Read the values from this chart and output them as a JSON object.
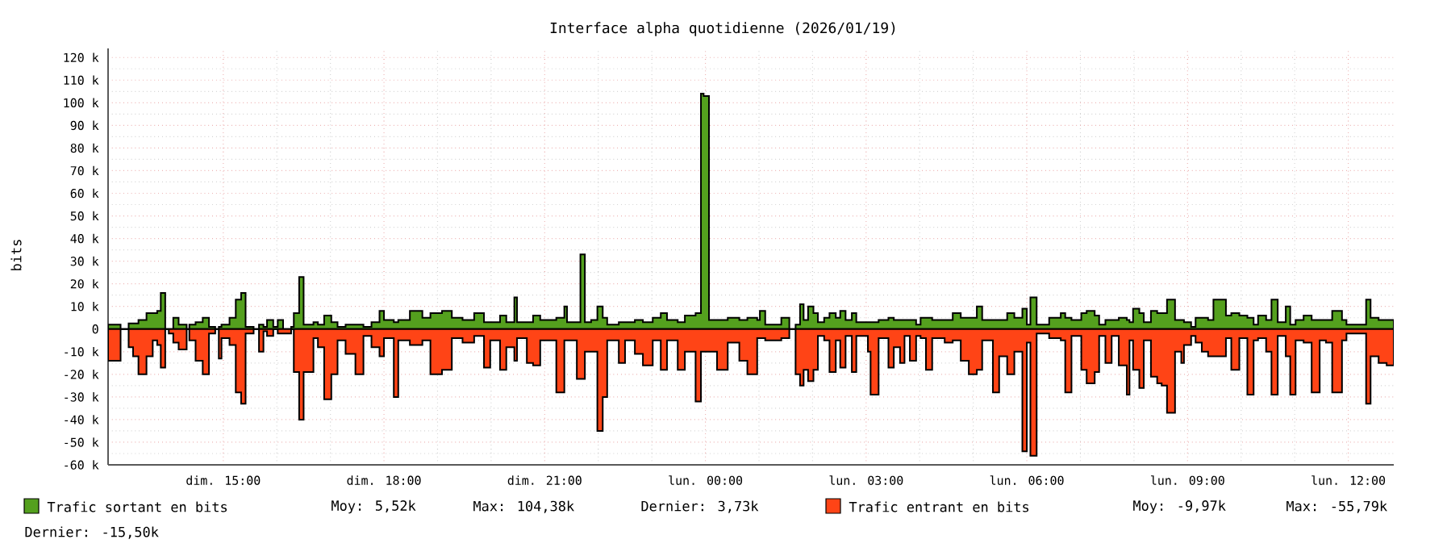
{
  "chart_data": {
    "type": "area",
    "title": "Interface alpha quotidienne (2026/01/19)",
    "ylabel": "bits",
    "x": [
      "2026-01-18T12:51",
      "2026-01-18T13:05",
      "2026-01-18T13:14",
      "2026-01-18T13:19",
      "2026-01-18T13:25",
      "2026-01-18T13:34",
      "2026-01-18T13:41",
      "2026-01-18T13:46",
      "2026-01-18T13:50",
      "2026-01-18T13:55",
      "2026-01-18T13:59",
      "2026-01-18T14:04",
      "2026-01-18T14:10",
      "2026-01-18T14:19",
      "2026-01-18T14:22",
      "2026-01-18T14:29",
      "2026-01-18T14:37",
      "2026-01-18T14:44",
      "2026-01-18T14:51",
      "2026-01-18T14:55",
      "2026-01-18T14:58",
      "2026-01-18T15:07",
      "2026-01-18T15:14",
      "2026-01-18T15:20",
      "2026-01-18T15:25",
      "2026-01-18T15:34",
      "2026-01-18T15:40",
      "2026-01-18T15:45",
      "2026-01-18T15:49",
      "2026-01-18T15:56",
      "2026-01-18T16:01",
      "2026-01-18T16:07",
      "2026-01-18T16:16",
      "2026-01-18T16:19",
      "2026-01-18T16:25",
      "2026-01-18T16:30",
      "2026-01-18T16:41",
      "2026-01-18T16:46",
      "2026-01-18T16:53",
      "2026-01-18T17:01",
      "2026-01-18T17:08",
      "2026-01-18T17:17",
      "2026-01-18T17:28",
      "2026-01-18T17:37",
      "2026-01-18T17:46",
      "2026-01-18T17:55",
      "2026-01-18T18:00",
      "2026-01-18T18:11",
      "2026-01-18T18:16",
      "2026-01-18T18:29",
      "2026-01-18T18:43",
      "2026-01-18T18:52",
      "2026-01-18T19:05",
      "2026-01-18T19:16",
      "2026-01-18T19:28",
      "2026-01-18T19:41",
      "2026-01-18T19:52",
      "2026-01-18T19:59",
      "2026-01-18T20:10",
      "2026-01-18T20:17",
      "2026-01-18T20:26",
      "2026-01-18T20:29",
      "2026-01-18T20:40",
      "2026-01-18T20:47",
      "2026-01-18T20:55",
      "2026-01-18T21:13",
      "2026-01-18T21:22",
      "2026-01-18T21:25",
      "2026-01-18T21:36",
      "2026-01-18T21:40",
      "2026-01-18T21:45",
      "2026-01-18T21:52",
      "2026-01-18T21:59",
      "2026-01-18T22:05",
      "2026-01-18T22:10",
      "2026-01-18T22:23",
      "2026-01-18T22:30",
      "2026-01-18T22:41",
      "2026-01-18T22:50",
      "2026-01-18T23:01",
      "2026-01-18T23:10",
      "2026-01-18T23:17",
      "2026-01-18T23:29",
      "2026-01-18T23:37",
      "2026-01-18T23:49",
      "2026-01-18T23:55",
      "2026-01-18T23:58",
      "2026-01-19T00:04",
      "2026-01-19T00:13",
      "2026-01-19T00:25",
      "2026-01-19T00:38",
      "2026-01-19T00:47",
      "2026-01-19T00:58",
      "2026-01-19T01:01",
      "2026-01-19T01:07",
      "2026-01-19T01:25",
      "2026-01-19T01:34",
      "2026-01-19T01:41",
      "2026-01-19T01:46",
      "2026-01-19T01:50",
      "2026-01-19T01:55",
      "2026-01-19T02:01",
      "2026-01-19T02:06",
      "2026-01-19T02:13",
      "2026-01-19T02:19",
      "2026-01-19T02:26",
      "2026-01-19T02:31",
      "2026-01-19T02:37",
      "2026-01-19T02:44",
      "2026-01-19T02:49",
      "2026-01-19T03:02",
      "2026-01-19T03:05",
      "2026-01-19T03:14",
      "2026-01-19T03:25",
      "2026-01-19T03:31",
      "2026-01-19T03:38",
      "2026-01-19T03:43",
      "2026-01-19T03:49",
      "2026-01-19T03:56",
      "2026-01-19T04:01",
      "2026-01-19T04:07",
      "2026-01-19T04:14",
      "2026-01-19T04:28",
      "2026-01-19T04:37",
      "2026-01-19T04:46",
      "2026-01-19T04:55",
      "2026-01-19T05:04",
      "2026-01-19T05:10",
      "2026-01-19T05:22",
      "2026-01-19T05:29",
      "2026-01-19T05:38",
      "2026-01-19T05:46",
      "2026-01-19T05:55",
      "2026-01-19T06:00",
      "2026-01-19T06:04",
      "2026-01-19T06:11",
      "2026-01-19T06:25",
      "2026-01-19T06:38",
      "2026-01-19T06:43",
      "2026-01-19T06:50",
      "2026-01-19T07:01",
      "2026-01-19T07:07",
      "2026-01-19T07:16",
      "2026-01-19T07:21",
      "2026-01-19T07:28",
      "2026-01-19T07:35",
      "2026-01-19T07:43",
      "2026-01-19T07:52",
      "2026-01-19T07:55",
      "2026-01-19T07:59",
      "2026-01-19T08:06",
      "2026-01-19T08:11",
      "2026-01-19T08:19",
      "2026-01-19T08:26",
      "2026-01-19T08:31",
      "2026-01-19T08:37",
      "2026-01-19T08:46",
      "2026-01-19T08:53",
      "2026-01-19T08:56",
      "2026-01-19T09:04",
      "2026-01-19T09:09",
      "2026-01-19T09:16",
      "2026-01-19T09:23",
      "2026-01-19T09:29",
      "2026-01-19T09:43",
      "2026-01-19T09:49",
      "2026-01-19T09:58",
      "2026-01-19T10:07",
      "2026-01-19T10:14",
      "2026-01-19T10:19",
      "2026-01-19T10:28",
      "2026-01-19T10:34",
      "2026-01-19T10:41",
      "2026-01-19T10:50",
      "2026-01-19T10:55",
      "2026-01-19T11:01",
      "2026-01-19T11:10",
      "2026-01-19T11:19",
      "2026-01-19T11:28",
      "2026-01-19T11:35",
      "2026-01-19T11:42",
      "2026-01-19T11:53",
      "2026-01-19T11:58",
      "2026-01-19T12:20",
      "2026-01-19T12:25",
      "2026-01-19T12:34",
      "2026-01-19T12:43",
      "2026-01-19T12:51"
    ],
    "series": [
      {
        "name": "Trafic sortant en bits",
        "color": "#54a01e",
        "values": [
          2000,
          0,
          2500,
          2500,
          4000,
          7000,
          7000,
          8000,
          16000,
          0,
          0,
          5000,
          2000,
          0,
          2000,
          3000,
          5000,
          1000,
          0,
          1000,
          2000,
          5000,
          13000,
          16000,
          1000,
          0,
          2000,
          1000,
          4000,
          1000,
          4000,
          0,
          1000,
          7000,
          23000,
          2000,
          3000,
          2000,
          6000,
          3000,
          1000,
          2000,
          2000,
          1000,
          3000,
          8000,
          4000,
          3000,
          4000,
          8000,
          5000,
          7000,
          8000,
          5000,
          4000,
          7000,
          3000,
          3000,
          6000,
          3000,
          14000,
          3000,
          3000,
          6000,
          4000,
          5000,
          10000,
          3000,
          3000,
          33000,
          3000,
          4000,
          10000,
          5000,
          2000,
          3000,
          3000,
          4000,
          3000,
          5000,
          7000,
          4000,
          3000,
          6000,
          7000,
          104000,
          103000,
          4000,
          4000,
          5000,
          4000,
          5000,
          4000,
          8000,
          2000,
          5000,
          0,
          2000,
          11000,
          4000,
          10000,
          7000,
          3000,
          5000,
          7000,
          5000,
          8000,
          4000,
          7000,
          3000,
          3000,
          3000,
          4000,
          5000,
          4000,
          4000,
          4000,
          4000,
          2000,
          5000,
          5000,
          4000,
          4000,
          7000,
          5000,
          5000,
          10000,
          4000,
          4000,
          4000,
          7000,
          5000,
          9000,
          2000,
          14000,
          2000,
          5000,
          7000,
          5000,
          4000,
          7000,
          8000,
          6000,
          2000,
          4000,
          4000,
          5000,
          4000,
          3000,
          9000,
          7000,
          3000,
          8000,
          7000,
          7000,
          13000,
          4000,
          4000,
          3000,
          1000,
          5000,
          5000,
          4000,
          13000,
          6000,
          7000,
          6000,
          5000,
          2000,
          6000,
          4000,
          13000,
          3000,
          10000,
          2000,
          4000,
          6000,
          4000,
          4000,
          4000,
          8000,
          4000,
          2000,
          13000,
          5000,
          4000,
          4000,
          4000
        ]
      },
      {
        "name": "Trafic entrant en bits",
        "color": "#ff4416",
        "values": [
          -14000,
          0,
          -8000,
          -12000,
          -20000,
          -12000,
          -5000,
          -7000,
          -17000,
          0,
          -2000,
          -6000,
          -9000,
          0,
          -5000,
          -14000,
          -20000,
          -2000,
          0,
          -13000,
          -4000,
          -7000,
          -28000,
          -33000,
          -2000,
          0,
          -10000,
          -1000,
          -3000,
          0,
          -2000,
          -2000,
          0,
          -19000,
          -40000,
          -19000,
          -4000,
          -8000,
          -31000,
          -20000,
          -5000,
          -11000,
          -20000,
          -3000,
          -8000,
          -12000,
          -4000,
          -30000,
          -5000,
          -7000,
          -5000,
          -20000,
          -18000,
          -4000,
          -6000,
          -3000,
          -17000,
          -5000,
          -18000,
          -8000,
          -14000,
          -4000,
          -15000,
          -16000,
          -5000,
          -28000,
          -5000,
          -5000,
          -22000,
          -22000,
          -10000,
          -10000,
          -45000,
          -30000,
          -5000,
          -15000,
          -5000,
          -11000,
          -16000,
          -5000,
          -18000,
          -5000,
          -18000,
          -10000,
          -32000,
          -10000,
          -10000,
          -10000,
          -18000,
          -6000,
          -14000,
          -20000,
          -4000,
          -4000,
          -5000,
          -4000,
          0,
          -20000,
          -25000,
          -18000,
          -23000,
          -18000,
          -3000,
          -5000,
          -19000,
          -5000,
          -17000,
          -3000,
          -19000,
          -3000,
          -10000,
          -29000,
          -4000,
          -17000,
          -8000,
          -15000,
          -3000,
          -14000,
          -3000,
          -4000,
          -18000,
          -4000,
          -6000,
          -5000,
          -14000,
          -20000,
          -18000,
          -5000,
          -28000,
          -12000,
          -20000,
          -10000,
          -54000,
          -6000,
          -56000,
          -2000,
          -4000,
          -5000,
          -28000,
          -3000,
          -18000,
          -24000,
          -19000,
          -3000,
          -15000,
          -3000,
          -16000,
          -29000,
          -5000,
          -18000,
          -26000,
          -5000,
          -21000,
          -24000,
          -25000,
          -37000,
          -10000,
          -15000,
          -7000,
          -3000,
          -6000,
          -10000,
          -12000,
          -12000,
          -4000,
          -18000,
          -4000,
          -29000,
          -5000,
          -4000,
          -10000,
          -29000,
          -3000,
          -12000,
          -29000,
          -5000,
          -6000,
          -28000,
          -5000,
          -6000,
          -28000,
          -5000,
          -2000,
          -33000,
          -12000,
          -15000,
          -16000,
          -16000
        ]
      }
    ],
    "xlim": [
      "2026-01-18T12:51",
      "2026-01-19T12:51"
    ],
    "xticks": [
      {
        "value": "2026-01-18T15:00",
        "label": "dim. 15:00"
      },
      {
        "value": "2026-01-18T18:00",
        "label": "dim. 18:00"
      },
      {
        "value": "2026-01-18T21:00",
        "label": "dim. 21:00"
      },
      {
        "value": "2026-01-19T00:00",
        "label": "lun. 00:00"
      },
      {
        "value": "2026-01-19T03:00",
        "label": "lun. 03:00"
      },
      {
        "value": "2026-01-19T06:00",
        "label": "lun. 06:00"
      },
      {
        "value": "2026-01-19T09:00",
        "label": "lun. 09:00"
      },
      {
        "value": "2026-01-19T12:00",
        "label": "lun. 12:00"
      }
    ],
    "ylim": [
      -60000,
      124000
    ],
    "yticks": [
      {
        "value": -60000,
        "label": "-60 k"
      },
      {
        "value": -50000,
        "label": "-50 k"
      },
      {
        "value": -40000,
        "label": "-40 k"
      },
      {
        "value": -30000,
        "label": "-30 k"
      },
      {
        "value": -20000,
        "label": "-20 k"
      },
      {
        "value": -10000,
        "label": "-10 k"
      },
      0,
      {
        "value": 10000,
        "label": "10 k"
      },
      {
        "value": 20000,
        "label": "20 k"
      },
      {
        "value": 30000,
        "label": "30 k"
      },
      {
        "value": 40000,
        "label": "40 k"
      },
      {
        "value": 50000,
        "label": "50 k"
      },
      {
        "value": 60000,
        "label": "60 k"
      },
      {
        "value": 70000,
        "label": "70 k"
      },
      {
        "value": 80000,
        "label": "80 k"
      },
      {
        "value": 90000,
        "label": "90 k"
      },
      {
        "value": 100000,
        "label": "100 k"
      },
      {
        "value": 110000,
        "label": "110 k"
      },
      {
        "value": 120000,
        "label": "120 k"
      }
    ],
    "grid": true,
    "legend": "bottom",
    "annotations": [
      "Moy: 5,52k",
      "Max: 104,38k",
      "Dernier: 3,73k",
      "Moy: -9,97k",
      "Max: -55,79k",
      "Dernier: -15,50k"
    ]
  }
}
